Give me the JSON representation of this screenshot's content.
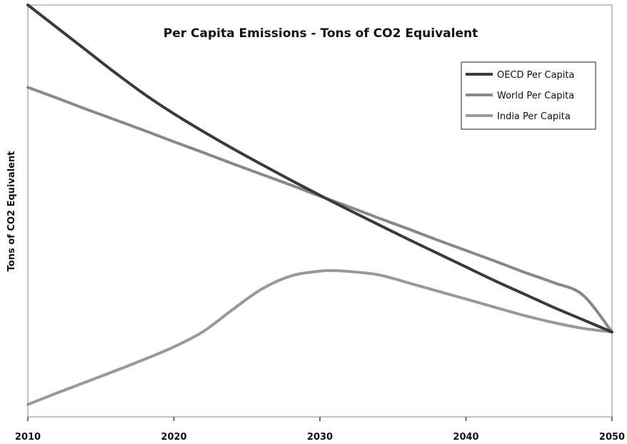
{
  "chart_data": {
    "type": "line",
    "title": "Per Capita Emissions - Tons of CO2 Equivalent",
    "xlabel": "",
    "ylabel": "Tons of CO2 Equivalent",
    "xlim": [
      2010,
      2050
    ],
    "x_ticks": [
      "2010",
      "2020",
      "2030",
      "2040",
      "2050"
    ],
    "y_ticks_shown": false,
    "grid": false,
    "legend_position": "top-right",
    "x": [
      2010,
      2012,
      2014,
      2016,
      2018,
      2020,
      2022,
      2024,
      2026,
      2028,
      2030,
      2031,
      2032,
      2034,
      2036,
      2038,
      2040,
      2042,
      2044,
      2046,
      2048,
      2050
    ],
    "series": [
      {
        "name": "OECD Per Capita",
        "color": "#3a3a3a",
        "values": [
          100,
          94.5,
          89,
          83.5,
          78.3,
          73.6,
          69.3,
          65.2,
          61.3,
          57.5,
          53.8,
          52,
          50.2,
          46.7,
          43.2,
          39.8,
          36.4,
          33,
          29.8,
          26.6,
          23.6,
          20.6
        ]
      },
      {
        "name": "World Per Capita",
        "color": "#888888",
        "values": [
          80,
          77.4,
          74.7,
          72.1,
          69.5,
          66.8,
          64.2,
          61.5,
          58.9,
          56.3,
          53.6,
          52.3,
          51,
          48.3,
          45.7,
          43,
          40.4,
          37.8,
          35.1,
          32.6,
          29.6,
          20.6
        ]
      },
      {
        "name": "India Per Capita",
        "color": "#999999",
        "values": [
          3,
          5.8,
          8.5,
          11.2,
          14,
          17,
          20.7,
          26,
          31,
          34.2,
          35.4,
          35.5,
          35.3,
          34.5,
          32.6,
          30.6,
          28.6,
          26.6,
          24.6,
          22.9,
          21.5,
          20.6
        ]
      }
    ],
    "ylim": [
      0,
      100
    ]
  }
}
